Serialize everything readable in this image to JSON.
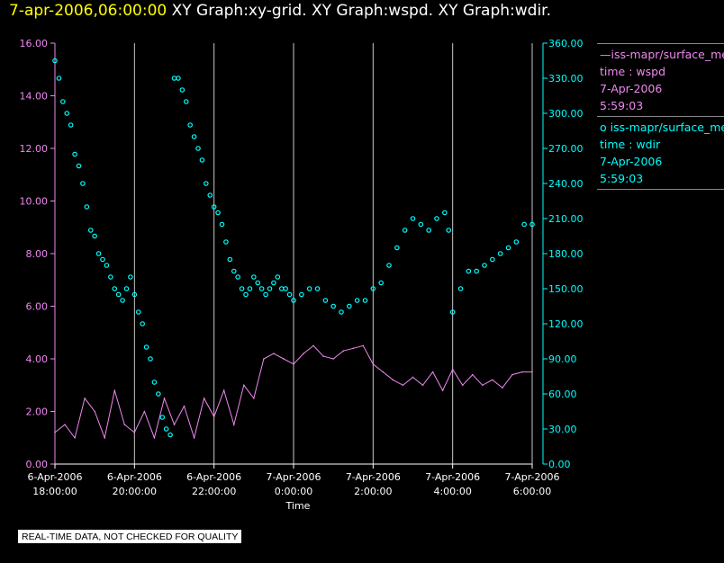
{
  "header": {
    "timestamp": "7-apr-2006,06:00:00",
    "graph_titles": "XY Graph:xy-grid.  XY Graph:wspd.  XY Graph:wdir."
  },
  "legend": {
    "wspd": {
      "marker": "—",
      "source": "iss-mapr/surface_met",
      "variable": "time : wspd",
      "date": "7-Apr-2006",
      "time": "5:59:03"
    },
    "wdir": {
      "marker": "o",
      "source": "iss-mapr/surface_met",
      "variable": "time : wdir",
      "date": "7-Apr-2006",
      "time": "5:59:03"
    }
  },
  "disclaimer": "REAL-TIME DATA, NOT CHECKED FOR QUALITY",
  "colors": {
    "wspd": "#ee88ee",
    "wdir": "#00ffff",
    "grid": "#c8c8c8",
    "axis_text": "#ffffff",
    "background": "#000000"
  },
  "chart_data": {
    "type": "line+scatter",
    "xlabel": "Time",
    "x_range_hours": [
      0,
      12
    ],
    "x_ticks": [
      {
        "hour": 0,
        "line1": "6-Apr-2006",
        "line2": "18:00:00"
      },
      {
        "hour": 2,
        "line1": "6-Apr-2006",
        "line2": "20:00:00"
      },
      {
        "hour": 4,
        "line1": "6-Apr-2006",
        "line2": "22:00:00"
      },
      {
        "hour": 6,
        "line1": "7-Apr-2006",
        "line2": "0:00:00"
      },
      {
        "hour": 8,
        "line1": "7-Apr-2006",
        "line2": "2:00:00"
      },
      {
        "hour": 10,
        "line1": "7-Apr-2006",
        "line2": "4:00:00"
      },
      {
        "hour": 12,
        "line1": "7-Apr-2006",
        "line2": "6:00:00"
      }
    ],
    "y_left": {
      "name": "wspd",
      "range": [
        0,
        16
      ],
      "ticks": [
        "0.00",
        "2.00",
        "4.00",
        "6.00",
        "8.00",
        "10.00",
        "12.00",
        "14.00",
        "16.00"
      ]
    },
    "y_right": {
      "name": "wdir",
      "range": [
        0,
        360
      ],
      "ticks": [
        "0.00",
        "30.00",
        "60.00",
        "90.00",
        "120.00",
        "150.00",
        "180.00",
        "210.00",
        "240.00",
        "270.00",
        "300.00",
        "330.00",
        "360.00"
      ]
    },
    "series": [
      {
        "name": "wspd",
        "style": "line",
        "axis": "left",
        "hours": [
          0,
          0.25,
          0.5,
          0.75,
          1,
          1.25,
          1.5,
          1.75,
          2,
          2.25,
          2.5,
          2.75,
          3,
          3.25,
          3.5,
          3.75,
          4,
          4.25,
          4.5,
          4.75,
          5,
          5.25,
          5.5,
          5.75,
          6,
          6.25,
          6.5,
          6.75,
          7,
          7.25,
          7.5,
          7.75,
          8,
          8.25,
          8.5,
          8.75,
          9,
          9.25,
          9.5,
          9.75,
          10,
          10.25,
          10.5,
          10.75,
          11,
          11.25,
          11.5,
          11.75,
          12
        ],
        "values": [
          1.2,
          1.5,
          1.0,
          2.5,
          2.0,
          1.0,
          2.8,
          1.5,
          1.2,
          2.0,
          1.0,
          2.5,
          1.5,
          2.2,
          1.0,
          2.5,
          1.8,
          2.8,
          1.5,
          3.0,
          2.5,
          4.0,
          4.2,
          4.0,
          3.8,
          4.2,
          4.5,
          4.1,
          4.0,
          4.3,
          4.4,
          4.5,
          3.8,
          3.5,
          3.2,
          3.0,
          3.3,
          3.0,
          3.5,
          2.8,
          3.6,
          3.0,
          3.4,
          3.0,
          3.2,
          2.9,
          3.4,
          3.5,
          3.5
        ]
      },
      {
        "name": "wdir",
        "style": "scatter",
        "axis": "right",
        "hours": [
          0,
          0.1,
          0.2,
          0.3,
          0.4,
          0.5,
          0.6,
          0.7,
          0.8,
          0.9,
          1.0,
          1.1,
          1.2,
          1.3,
          1.4,
          1.5,
          1.6,
          1.7,
          1.8,
          1.9,
          2.0,
          2.1,
          2.2,
          2.3,
          2.4,
          2.5,
          2.6,
          2.7,
          2.8,
          2.9,
          3.0,
          3.1,
          3.2,
          3.3,
          3.4,
          3.5,
          3.6,
          3.7,
          3.8,
          3.9,
          4.0,
          4.1,
          4.2,
          4.3,
          4.4,
          4.5,
          4.6,
          4.7,
          4.8,
          4.9,
          5.0,
          5.1,
          5.2,
          5.3,
          5.4,
          5.5,
          5.6,
          5.7,
          5.8,
          5.9,
          6.0,
          6.2,
          6.4,
          6.6,
          6.8,
          7.0,
          7.2,
          7.4,
          7.6,
          7.8,
          8.0,
          8.2,
          8.4,
          8.6,
          8.8,
          9.0,
          9.2,
          9.4,
          9.6,
          9.8,
          9.9,
          10.0,
          10.2,
          10.4,
          10.6,
          10.8,
          11.0,
          11.2,
          11.4,
          11.6,
          11.8,
          12.0
        ],
        "values": [
          345,
          330,
          310,
          300,
          290,
          265,
          255,
          240,
          220,
          200,
          195,
          180,
          175,
          170,
          160,
          150,
          145,
          140,
          150,
          160,
          145,
          130,
          120,
          100,
          90,
          70,
          60,
          40,
          30,
          25,
          330,
          330,
          320,
          310,
          290,
          280,
          270,
          260,
          240,
          230,
          220,
          215,
          205,
          190,
          175,
          165,
          160,
          150,
          145,
          150,
          160,
          155,
          150,
          145,
          150,
          155,
          160,
          150,
          150,
          145,
          140,
          145,
          150,
          150,
          140,
          135,
          130,
          135,
          140,
          140,
          150,
          155,
          170,
          185,
          200,
          210,
          205,
          200,
          210,
          215,
          200,
          130,
          150,
          165,
          165,
          170,
          175,
          180,
          185,
          190,
          205,
          205
        ]
      }
    ]
  }
}
